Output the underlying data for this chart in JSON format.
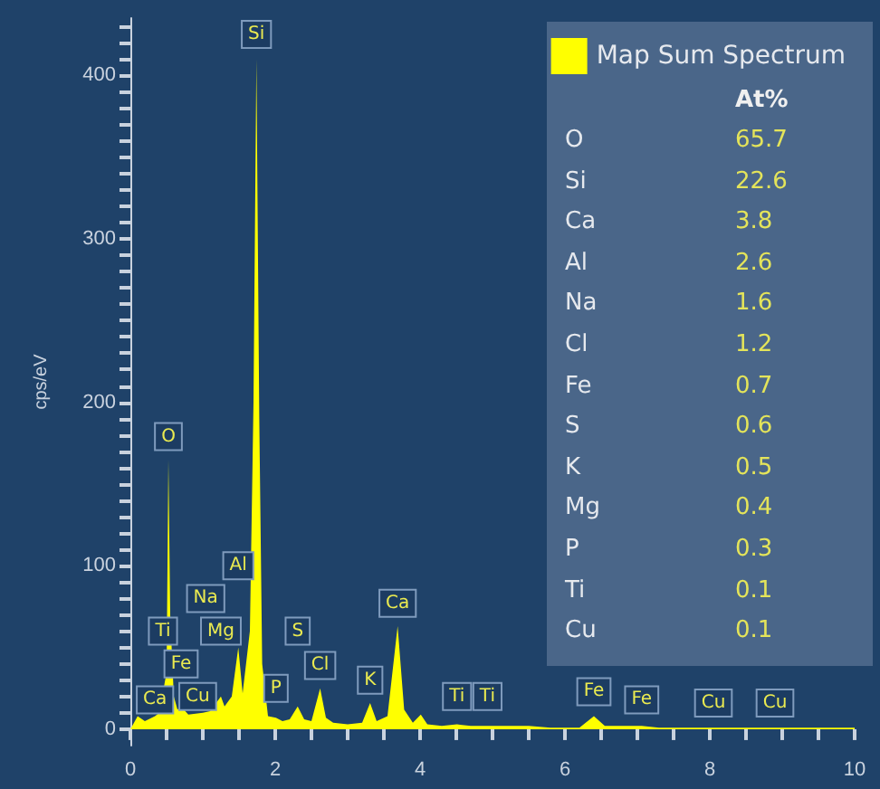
{
  "chart_data": [
    {
      "type": "area",
      "ylabel": "cps/eV",
      "legend": "top right",
      "marker": "none",
      "grid": false,
      "xlim": [
        0,
        10
      ],
      "ylim": [
        -10,
        435
      ],
      "xticks": [
        0,
        {
          "value": 0.5,
          "label": null
        },
        {
          "value": 1,
          "label": null
        },
        {
          "value": 1.5,
          "label": null
        },
        2,
        {
          "value": 2.5,
          "label": null
        },
        {
          "value": 3,
          "label": null
        },
        {
          "value": 3.5,
          "label": null
        },
        4,
        {
          "value": 4.5,
          "label": null
        },
        {
          "value": 5,
          "label": null
        },
        {
          "value": 5.5,
          "label": null
        },
        6,
        {
          "value": 6.5,
          "label": null
        },
        {
          "value": 7,
          "label": null
        },
        {
          "value": 7.5,
          "label": null
        },
        8,
        {
          "value": 8.5,
          "label": null
        },
        {
          "value": 9,
          "label": null
        },
        {
          "value": 9.5,
          "label": null
        },
        10
      ],
      "yticks": [
        0,
        {
          "value": 10,
          "label": null
        },
        {
          "value": 20,
          "label": null
        },
        {
          "value": 30,
          "label": null
        },
        {
          "value": 40,
          "label": null
        },
        {
          "value": 50,
          "label": null
        },
        {
          "value": 60,
          "label": null
        },
        {
          "value": 70,
          "label": null
        },
        {
          "value": 80,
          "label": null
        },
        {
          "value": 90,
          "label": null
        },
        100,
        {
          "value": 110,
          "label": null
        },
        {
          "value": 120,
          "label": null
        },
        {
          "value": 130,
          "label": null
        },
        {
          "value": 140,
          "label": null
        },
        {
          "value": 150,
          "label": null
        },
        {
          "value": 160,
          "label": null
        },
        {
          "value": 170,
          "label": null
        },
        {
          "value": 180,
          "label": null
        },
        {
          "value": 190,
          "label": null
        },
        200,
        {
          "value": 210,
          "label": null
        },
        {
          "value": 220,
          "label": null
        },
        {
          "value": 230,
          "label": null
        },
        {
          "value": 240,
          "label": null
        },
        {
          "value": 250,
          "label": null
        },
        {
          "value": 260,
          "label": null
        },
        {
          "value": 270,
          "label": null
        },
        {
          "value": 280,
          "label": null
        },
        {
          "value": 290,
          "label": null
        },
        300,
        {
          "value": 310,
          "label": null
        },
        {
          "value": 320,
          "label": null
        },
        {
          "value": 330,
          "label": null
        },
        {
          "value": 340,
          "label": null
        },
        {
          "value": 350,
          "label": null
        },
        {
          "value": 360,
          "label": null
        },
        {
          "value": 370,
          "label": null
        },
        {
          "value": 380,
          "label": null
        },
        {
          "value": 390,
          "label": null
        },
        400,
        {
          "value": 410,
          "label": null
        },
        {
          "value": 420,
          "label": null
        },
        {
          "value": 430,
          "label": null
        }
      ],
      "x": [
        0,
        0.1,
        0.2,
        0.34,
        0.4,
        0.5,
        0.525,
        0.55,
        0.6,
        0.65,
        0.7,
        0.8,
        1.0,
        1.1,
        1.25,
        1.3,
        1.4,
        1.49,
        1.55,
        1.65,
        1.7,
        1.74,
        1.78,
        1.82,
        1.9,
        2.01,
        2.1,
        2.2,
        2.31,
        2.4,
        2.5,
        2.62,
        2.7,
        2.8,
        3.0,
        3.2,
        3.31,
        3.4,
        3.55,
        3.69,
        3.78,
        3.9,
        4.01,
        4.1,
        4.3,
        4.51,
        4.7,
        4.93,
        5.2,
        5.5,
        5.8,
        6.2,
        6.4,
        6.55,
        7.06,
        7.3,
        8.05,
        8.9,
        10
      ],
      "series": [
        {
          "name": "Map Sum Spectrum",
          "color": "#ffff00",
          "values": [
            0,
            8,
            5,
            8,
            10,
            35,
            165,
            70,
            20,
            12,
            14,
            9,
            10,
            11,
            20,
            14,
            20,
            50,
            22,
            60,
            200,
            410,
            190,
            40,
            8,
            7,
            5,
            6,
            14,
            6,
            5,
            25,
            7,
            4,
            3,
            4,
            16,
            5,
            8,
            63,
            12,
            4,
            9,
            3,
            2,
            3,
            2,
            2,
            2,
            2,
            1,
            1,
            8,
            2,
            2,
            1,
            1,
            1,
            1
          ]
        }
      ],
      "annotations": [
        {
          "text": "Ca",
          "x": 0.34,
          "y": 18
        },
        {
          "text": "Ti",
          "x": 0.45,
          "y": 60
        },
        {
          "text": "Fe",
          "x": 0.7,
          "y": 40
        },
        {
          "text": "Cu",
          "x": 0.93,
          "y": 20
        },
        {
          "text": "Na",
          "x": 1.04,
          "y": 80
        },
        {
          "text": "Mg",
          "x": 1.25,
          "y": 60
        },
        {
          "text": "Al",
          "x": 1.49,
          "y": 100
        },
        {
          "text": "Si",
          "x": 1.74,
          "y": 425
        },
        {
          "text": "O",
          "x": 0.525,
          "y": 179
        },
        {
          "text": "P",
          "x": 2.01,
          "y": 25
        },
        {
          "text": "S",
          "x": 2.31,
          "y": 60
        },
        {
          "text": "Cl",
          "x": 2.62,
          "y": 39
        },
        {
          "text": "K",
          "x": 3.31,
          "y": 30
        },
        {
          "text": "Ca",
          "x": 3.69,
          "y": 77
        },
        {
          "text": "Ti",
          "x": 4.51,
          "y": 20
        },
        {
          "text": "Ti",
          "x": 4.93,
          "y": 20
        },
        {
          "text": "Fe",
          "x": 6.4,
          "y": 23
        },
        {
          "text": "Fe",
          "x": 7.06,
          "y": 18
        },
        {
          "text": "Cu",
          "x": 8.05,
          "y": 16
        },
        {
          "text": "Cu",
          "x": 8.9,
          "y": 16
        }
      ]
    },
    {
      "type": "other",
      "title": "At%",
      "data_labels": true,
      "categories": [
        "O",
        "Si",
        "Ca",
        "Al",
        "Na",
        "Cl",
        "Fe",
        "S",
        "K",
        "Mg",
        "P",
        "Ti",
        "Cu"
      ],
      "values": [
        65.7,
        22.6,
        3.8,
        2.6,
        1.6,
        1.2,
        0.7,
        0.6,
        0.5,
        0.4,
        0.3,
        0.1,
        0.1
      ]
    }
  ]
}
